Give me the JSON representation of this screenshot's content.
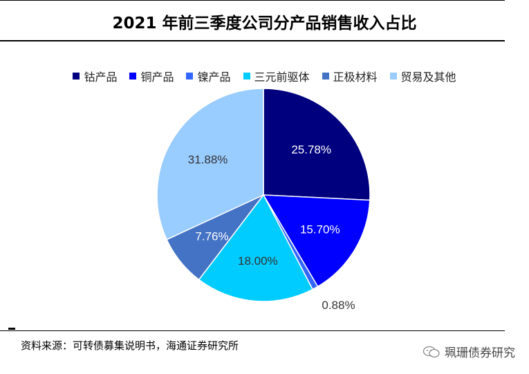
{
  "chart_data": {
    "type": "pie",
    "title": "2021 年前三季度公司分产品销售收入占比",
    "slices": [
      {
        "name": "钴产品",
        "value": 25.78,
        "label": "25.78%",
        "color": "#00007f"
      },
      {
        "name": "铜产品",
        "value": 15.7,
        "label": "15.70%",
        "color": "#0000ff"
      },
      {
        "name": "镍产品",
        "value": 0.88,
        "label": "0.88%",
        "color": "#3366ff"
      },
      {
        "name": "三元前驱体",
        "value": 18.0,
        "label": "18.00%",
        "color": "#00ccff"
      },
      {
        "name": "正极材料",
        "value": 7.76,
        "label": "7.76%",
        "color": "#4472c4"
      },
      {
        "name": "贸易及其他",
        "value": 31.88,
        "label": "31.88%",
        "color": "#99ccff"
      }
    ],
    "legend_position": "top"
  },
  "footer": {
    "source": "资料来源：可转债募集说明书，海通证券研究所",
    "watermark": "珮珊债券研究",
    "watermark_icon": "wechat-icon"
  }
}
